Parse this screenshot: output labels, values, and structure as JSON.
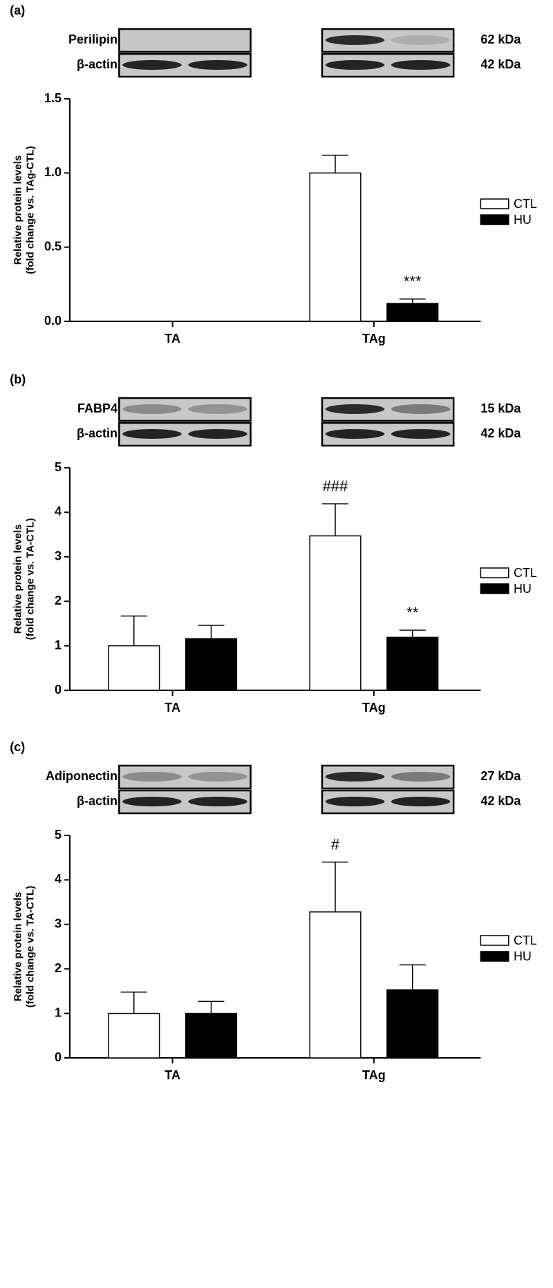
{
  "chart_data": [
    {
      "type": "bar",
      "panel_label": "(a)",
      "blots": [
        {
          "label": "Perilipin",
          "size": "62 kDa"
        },
        {
          "label": "β-actin",
          "size": "42 kDa"
        }
      ],
      "y_label": [
        "Relative protein levels",
        "(fold change vs. TAg-CTL)"
      ],
      "categories": [
        "TA",
        "TAg"
      ],
      "series": [
        {
          "name": "CTL",
          "color": "#ffffff",
          "values": [
            null,
            1.0
          ],
          "errors": [
            null,
            0.12
          ],
          "annotations": [
            null,
            null
          ]
        },
        {
          "name": "HU",
          "color": "#000000",
          "values": [
            null,
            0.12
          ],
          "errors": [
            null,
            0.03
          ],
          "annotations": [
            null,
            "***"
          ]
        }
      ],
      "ylim": [
        0,
        1.5
      ],
      "yticks": [
        {
          "value": 0,
          "label": "0.0"
        },
        0.5,
        {
          "value": 1,
          "label": "1.0"
        },
        1.5
      ]
    },
    {
      "type": "bar",
      "panel_label": "(b)",
      "blots": [
        {
          "label": "FABP4",
          "size": "15 kDa"
        },
        {
          "label": "β-actin",
          "size": "42 kDa"
        }
      ],
      "y_label": [
        "Relative protein levels",
        "(fold change vs. TA-CTL)"
      ],
      "categories": [
        "TA",
        "TAg"
      ],
      "series": [
        {
          "name": "CTL",
          "color": "#ffffff",
          "values": [
            1.0,
            3.47
          ],
          "errors": [
            0.67,
            0.72
          ],
          "annotations": [
            null,
            "###"
          ]
        },
        {
          "name": "HU",
          "color": "#000000",
          "values": [
            1.16,
            1.19
          ],
          "errors": [
            0.3,
            0.16
          ],
          "annotations": [
            null,
            "**"
          ]
        }
      ],
      "ylim": [
        0,
        5
      ],
      "yticks": [
        0,
        1,
        2,
        3,
        4,
        5
      ]
    },
    {
      "type": "bar",
      "panel_label": "(c)",
      "blots": [
        {
          "label": "Adiponectin",
          "size": "27 kDa"
        },
        {
          "label": "β-actin",
          "size": "42 kDa"
        }
      ],
      "y_label": [
        "Relative protein levels",
        "(fold change vs. TA-CTL)"
      ],
      "categories": [
        "TA",
        "TAg"
      ],
      "series": [
        {
          "name": "CTL",
          "color": "#ffffff",
          "values": [
            1.0,
            3.28
          ],
          "errors": [
            0.48,
            1.12
          ],
          "annotations": [
            null,
            "#"
          ]
        },
        {
          "name": "HU",
          "color": "#000000",
          "values": [
            1.0,
            1.53
          ],
          "errors": [
            0.27,
            0.56
          ],
          "annotations": [
            null,
            null
          ]
        }
      ],
      "ylim": [
        0,
        5
      ],
      "yticks": [
        0,
        1,
        2,
        3,
        4,
        5
      ]
    }
  ]
}
